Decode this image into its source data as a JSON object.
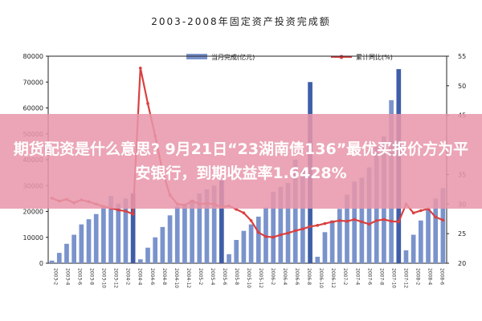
{
  "chart_data": {
    "type": "bar+line",
    "title": "2003-2008年固定资产投资完成额",
    "series": [
      {
        "name": "当月完成(亿元)",
        "type": "bar",
        "axis": "left",
        "values": [
          1000,
          4000,
          7500,
          11000,
          15000,
          17000,
          19000,
          22000,
          26000,
          23000,
          25000,
          27000,
          1500,
          6000,
          10000,
          14000,
          18500,
          22000,
          23000,
          24500,
          27000,
          28500,
          30000,
          32000,
          3500,
          9000,
          12500,
          15000,
          18000,
          21500,
          27500,
          29500,
          31000,
          40000,
          36000,
          70000,
          2500,
          12000,
          16500,
          21000,
          26500,
          31500,
          33000,
          37000,
          45000,
          49000,
          63000,
          75000,
          5000,
          11000,
          16500,
          21000,
          25000,
          29000
        ]
      },
      {
        "name": "累计同比(%)",
        "type": "line",
        "axis": "right",
        "values": [
          31,
          30.5,
          30.8,
          30.2,
          30.7,
          30.4,
          30.0,
          29.6,
          29.3,
          29.0,
          28.8,
          28.3,
          53,
          47,
          41.5,
          35.5,
          31.5,
          30.0,
          29.8,
          30.5,
          30.0,
          30.1,
          30.0,
          29.5,
          29.7,
          29.1,
          28.5,
          27.2,
          25.2,
          24.5,
          24.4,
          24.8,
          25.1,
          25.5,
          25.8,
          26.2,
          26.4,
          26.7,
          27.0,
          27.2,
          27.1,
          27.4,
          27.0,
          26.6,
          27.2,
          27.4,
          27.1,
          27.0,
          30.0,
          28.5,
          28.9,
          29.2,
          27.8,
          27.3
        ]
      }
    ],
    "y_left": {
      "min": 0,
      "max": 80000,
      "ticks": [
        "0",
        "10000",
        "20000",
        "30000",
        "40000",
        "50000",
        "60000",
        "70000",
        "80000"
      ]
    },
    "y_right": {
      "min": 20,
      "max": 55,
      "ticks": [
        "20",
        "25",
        "30",
        "35",
        "40",
        "45",
        "50",
        "55"
      ]
    },
    "x_ticks": [
      "2003-2",
      "2003-4",
      "2003-6",
      "2003-8",
      "2003-10",
      "2003-12",
      "2004-2",
      "2004-4",
      "2004-6",
      "2004-8",
      "2004-10",
      "2004-12",
      "2005-2",
      "2005-4",
      "2005-6",
      "2005-8",
      "2005-10",
      "2005-12",
      "2006-2",
      "2006-4",
      "2006-6",
      "2006-8",
      "2006-10",
      "2006-12",
      "2007-2",
      "2007-4",
      "2007-6",
      "2007-8",
      "2007-10",
      "2007-12",
      "2008-2",
      "2008-4",
      "2008-6"
    ],
    "legend_placement": "top",
    "grid": false,
    "colors": {
      "bar": "#7a93cc",
      "bar_highlight": "#3f5ea8",
      "line": "#d94040"
    }
  },
  "overlay": {
    "text": "期货配资是什么意思? 9月21日“23湖南债136”最优买报价方为平安银行，到期收益率1.6428%",
    "background": "#e896aa"
  }
}
